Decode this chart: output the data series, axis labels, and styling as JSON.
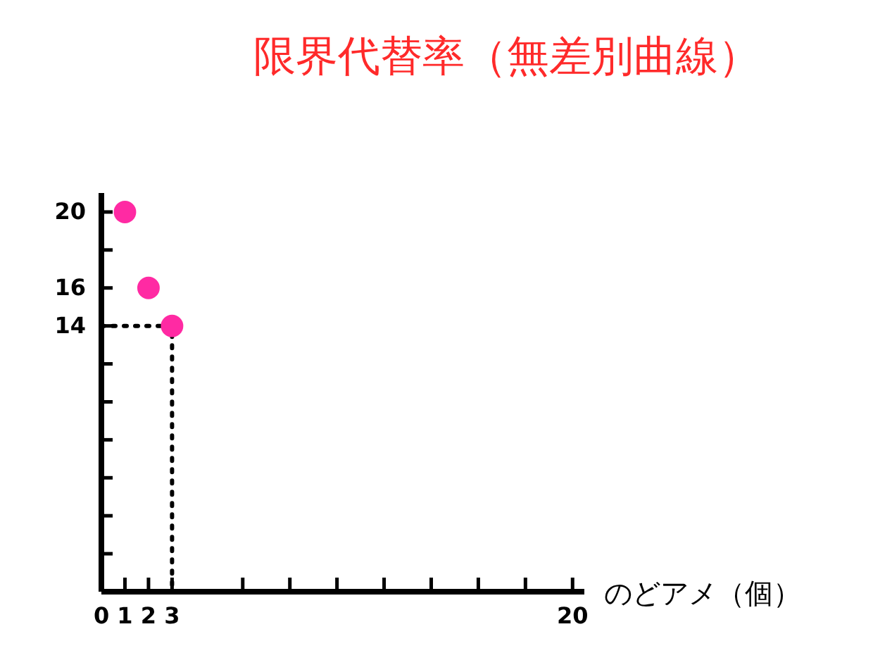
{
  "chart_data": {
    "type": "scatter",
    "title": "限界代替率（無差別曲線）",
    "xlabel": "のどアメ（個）",
    "xlim": [
      0,
      20.5
    ],
    "ylim": [
      0,
      21
    ],
    "xticks": [
      0,
      1,
      2,
      3,
      {
        "value": 6,
        "label": null
      },
      {
        "value": 8,
        "label": null
      },
      {
        "value": 10,
        "label": null
      },
      {
        "value": 12,
        "label": null
      },
      {
        "value": 14,
        "label": null
      },
      {
        "value": 16,
        "label": null
      },
      {
        "value": 18,
        "label": null
      },
      20
    ],
    "yticks": [
      {
        "value": 2,
        "label": null
      },
      {
        "value": 4,
        "label": null
      },
      {
        "value": 6,
        "label": null
      },
      {
        "value": 8,
        "label": null
      },
      {
        "value": 10,
        "label": null
      },
      {
        "value": 12,
        "label": null
      },
      14,
      16,
      {
        "value": 18,
        "label": null
      },
      20
    ],
    "grid": false,
    "series": [
      {
        "type": "line",
        "x": [
          0,
          3,
          3
        ],
        "values": [
          14,
          14,
          0
        ],
        "color": "#000000",
        "line_style": "dotted",
        "marker": "none"
      },
      {
        "x": [
          1,
          2,
          3
        ],
        "values": [
          20,
          16,
          14
        ],
        "color": "#ff2aa3",
        "marker": "circle"
      }
    ]
  }
}
